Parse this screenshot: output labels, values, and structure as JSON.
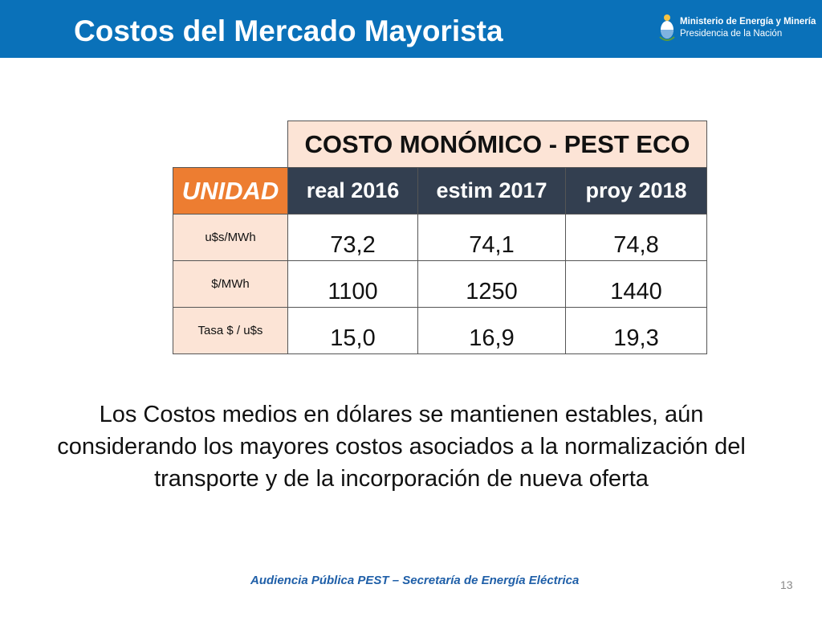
{
  "header": {
    "title": "Costos del Mercado Mayorista",
    "logo": {
      "line1": "Ministerio de Energía y Minería",
      "line2": "Presidencia de la Nación",
      "icon": "argentina-coat-of-arms-icon"
    }
  },
  "table": {
    "title": "COSTO MONÓMICO - PEST ECO",
    "unit_header": "UNIDAD",
    "columns": [
      "real 2016",
      "estim 2017",
      "proy 2018"
    ],
    "rows": [
      {
        "unit": "u$s/MWh",
        "values": [
          "73,2",
          "74,1",
          "74,8"
        ]
      },
      {
        "unit": "$/MWh",
        "values": [
          "1100",
          "1250",
          "1440"
        ]
      },
      {
        "unit": "Tasa $ / u$s",
        "values": [
          "15,0",
          "16,9",
          "19,3"
        ]
      }
    ]
  },
  "paragraph": "Los Costos medios en dólares se mantienen estables, aún considerando los mayores costos asociados a la normalización del transporte y de la incorporación de nueva oferta",
  "footer": {
    "text": "Audiencia Pública PEST – Secretaría de Energía Eléctrica",
    "page_number": "13"
  },
  "colors": {
    "header_bg": "#0a71b9",
    "unit_header_bg": "#ed7d31",
    "column_header_bg": "#333f50",
    "light_peach": "#fce4d6",
    "footer_text": "#1f5fa8"
  }
}
